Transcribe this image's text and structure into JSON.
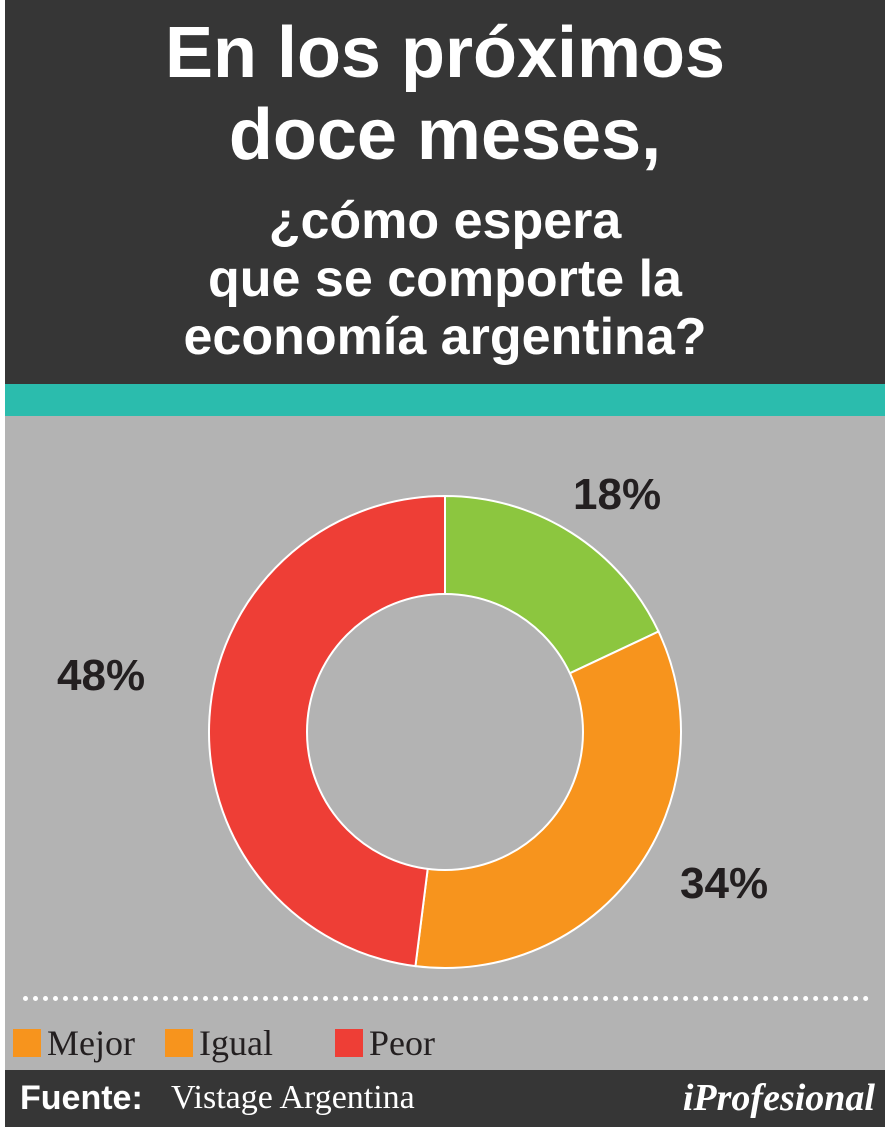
{
  "header": {
    "title_lines": [
      "En los próximos",
      "doce meses,",
      "¿cómo espera",
      "que se comporte la",
      "economía argentina?"
    ]
  },
  "colors": {
    "header_bg": "#363636",
    "accent_bar": "#2bbcad",
    "panel_bg": "#b3b3b3",
    "mejor": "#8cc63f",
    "igual": "#f7941d",
    "peor": "#ee3e36"
  },
  "chart_data": {
    "type": "pie",
    "style": "donut",
    "categories": [
      "Mejor",
      "Igual",
      "Peor"
    ],
    "values": [
      18,
      34,
      48
    ],
    "data_labels": [
      "18%",
      "34%",
      "48%"
    ],
    "colors": [
      "#8cc63f",
      "#f7941d",
      "#ee3e36"
    ],
    "legend_position": "bottom",
    "legend_swatch_colors": [
      "#f7941d",
      "#f7941d",
      "#ee3e36"
    ]
  },
  "legend": {
    "items": [
      {
        "label": "Mejor"
      },
      {
        "label": "Igual"
      },
      {
        "label": "Peor"
      }
    ]
  },
  "footer": {
    "source_label": "Fuente:",
    "source_value": "Vistage Argentina",
    "brand": "iProfesional"
  }
}
